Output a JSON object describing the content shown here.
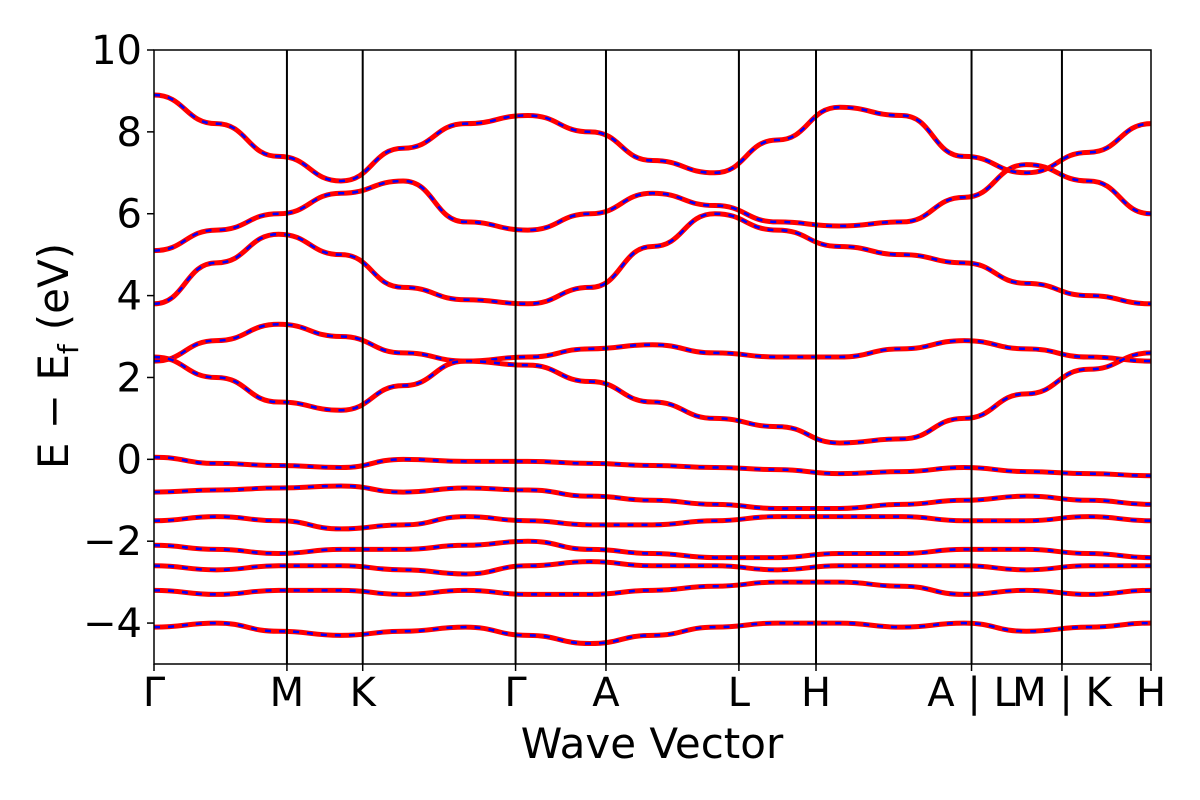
{
  "chart_data": {
    "type": "line",
    "xlabel": "Wave Vector",
    "ylabel_main": "E − E",
    "ylabel_sub": "f",
    "ylabel_unit": "(eV)",
    "ylim": [
      -5,
      10
    ],
    "yticks": [
      {
        "value": 10,
        "label": "10"
      },
      {
        "value": 8,
        "label": "8"
      },
      {
        "value": 6,
        "label": "6"
      },
      {
        "value": 4,
        "label": "4"
      },
      {
        "value": 2,
        "label": "2"
      },
      {
        "value": 0,
        "label": "0"
      },
      {
        "value": -2,
        "label": "−2"
      },
      {
        "value": -4,
        "label": "−4"
      }
    ],
    "kpath": [
      {
        "label": "Γ",
        "x": 0
      },
      {
        "label": "M",
        "x": 1
      },
      {
        "label": "K",
        "x": 1.57
      },
      {
        "label": "Γ",
        "x": 2.72
      },
      {
        "label": "A",
        "x": 3.4
      },
      {
        "label": "L",
        "x": 4.4
      },
      {
        "label": "H",
        "x": 4.98
      },
      {
        "label": "A | L",
        "x": 6.15
      },
      {
        "label": "M | K",
        "x": 6.83
      },
      {
        "label": "H",
        "x": 7.5
      }
    ],
    "series_colors": {
      "band_main": "#ff0000",
      "band_overlay": "#0000ff"
    },
    "bands": [
      [
        0.05,
        -0.1,
        -0.15,
        -0.2,
        0.0,
        -0.05,
        -0.05,
        -0.1,
        -0.15,
        -0.2,
        -0.25,
        -0.35,
        -0.3,
        -0.2,
        -0.3,
        -0.35,
        -0.4
      ],
      [
        -0.8,
        -0.75,
        -0.7,
        -0.65,
        -0.8,
        -0.7,
        -0.75,
        -0.9,
        -1.0,
        -1.1,
        -1.2,
        -1.2,
        -1.1,
        -1.0,
        -0.9,
        -1.0,
        -1.1
      ],
      [
        -1.5,
        -1.4,
        -1.5,
        -1.7,
        -1.6,
        -1.4,
        -1.5,
        -1.6,
        -1.6,
        -1.5,
        -1.4,
        -1.4,
        -1.4,
        -1.5,
        -1.5,
        -1.4,
        -1.5
      ],
      [
        -2.1,
        -2.2,
        -2.3,
        -2.2,
        -2.2,
        -2.1,
        -2.0,
        -2.2,
        -2.3,
        -2.4,
        -2.4,
        -2.3,
        -2.3,
        -2.2,
        -2.2,
        -2.3,
        -2.4
      ],
      [
        -2.6,
        -2.7,
        -2.6,
        -2.6,
        -2.7,
        -2.8,
        -2.6,
        -2.5,
        -2.6,
        -2.6,
        -2.7,
        -2.6,
        -2.6,
        -2.6,
        -2.7,
        -2.6,
        -2.6
      ],
      [
        -3.2,
        -3.3,
        -3.2,
        -3.2,
        -3.3,
        -3.2,
        -3.3,
        -3.3,
        -3.2,
        -3.1,
        -3.0,
        -3.0,
        -3.1,
        -3.3,
        -3.2,
        -3.3,
        -3.2
      ],
      [
        -4.1,
        -4.0,
        -4.2,
        -4.3,
        -4.2,
        -4.1,
        -4.3,
        -4.5,
        -4.3,
        -4.1,
        -4.0,
        -4.0,
        -4.1,
        -4.0,
        -4.2,
        -4.1,
        -4.0
      ],
      [
        2.4,
        2.9,
        3.3,
        3.0,
        2.6,
        2.4,
        2.5,
        2.7,
        2.8,
        2.6,
        2.5,
        2.5,
        2.7,
        2.9,
        2.7,
        2.5,
        2.4
      ],
      [
        2.5,
        2.0,
        1.4,
        1.2,
        1.8,
        2.4,
        2.3,
        1.9,
        1.4,
        1.0,
        0.8,
        0.4,
        0.5,
        1.0,
        1.6,
        2.2,
        2.6
      ],
      [
        3.8,
        4.8,
        5.5,
        5.0,
        4.2,
        3.9,
        3.8,
        4.2,
        5.2,
        6.0,
        5.6,
        5.2,
        5.0,
        4.8,
        4.3,
        4.0,
        3.8
      ],
      [
        5.1,
        5.6,
        6.0,
        6.5,
        6.8,
        5.8,
        5.6,
        6.0,
        6.5,
        6.2,
        5.8,
        5.7,
        5.8,
        6.4,
        7.2,
        6.8,
        6.0
      ],
      [
        8.9,
        8.2,
        7.4,
        6.8,
        7.6,
        8.2,
        8.4,
        8.0,
        7.3,
        7.0,
        7.8,
        8.6,
        8.4,
        7.4,
        7.0,
        7.5,
        8.2
      ]
    ]
  }
}
